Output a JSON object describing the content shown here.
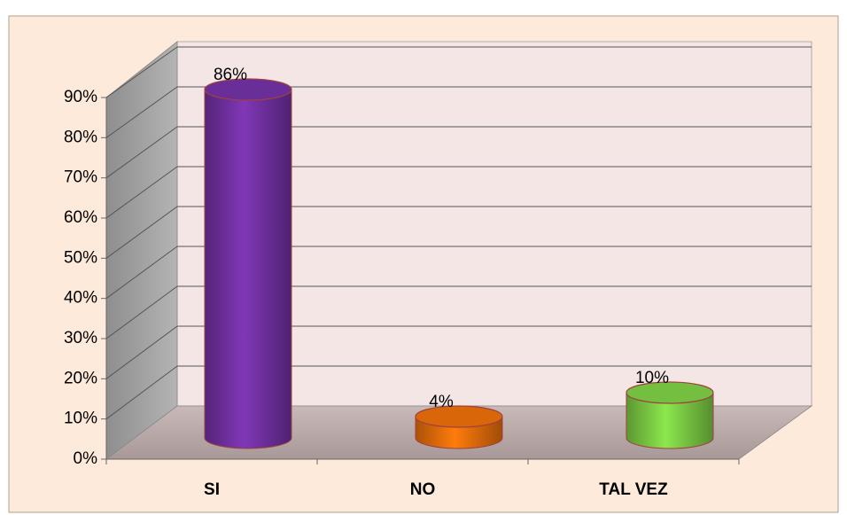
{
  "chart_data": {
    "type": "bar3d",
    "categories": [
      "SI",
      "NO",
      "TAL VEZ"
    ],
    "values": [
      86,
      4,
      10
    ],
    "value_labels": [
      "86%",
      "4%",
      "10%"
    ],
    "colors": [
      "#7030a0",
      "#e46c0a",
      "#7ac943"
    ],
    "ylim": [
      0,
      90
    ],
    "yticks": [
      {
        "value": 0,
        "label": "0%"
      },
      {
        "value": 10,
        "label": "10%"
      },
      {
        "value": 20,
        "label": "20%"
      },
      {
        "value": 30,
        "label": "30%"
      },
      {
        "value": 40,
        "label": "40%"
      },
      {
        "value": 50,
        "label": "50%"
      },
      {
        "value": 60,
        "label": "60%"
      },
      {
        "value": 70,
        "label": "70%"
      },
      {
        "value": 80,
        "label": "80%"
      },
      {
        "value": 90,
        "label": "90%"
      }
    ],
    "grid": true
  }
}
